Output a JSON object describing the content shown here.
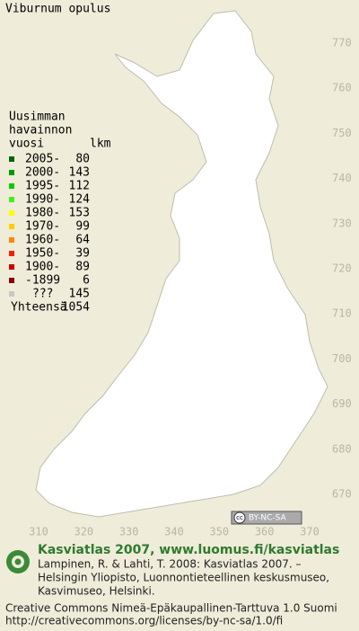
{
  "title": "Viburnum opulus",
  "legend": {
    "heading": [
      "Uusimman",
      "havainnon"
    ],
    "columns": [
      "vuosi",
      "lkm"
    ],
    "entries": [
      {
        "label": "2005-",
        "count": 80,
        "color": "#006600"
      },
      {
        "label": "2000-",
        "count": 143,
        "color": "#009900"
      },
      {
        "label": "1995-",
        "count": 112,
        "color": "#00cc00"
      },
      {
        "label": "1990-",
        "count": 124,
        "color": "#44ee22"
      },
      {
        "label": "1980-",
        "count": 153,
        "color": "#ffff00"
      },
      {
        "label": "1970-",
        "count": 99,
        "color": "#ffcc00"
      },
      {
        "label": "1960-",
        "count": 64,
        "color": "#ff8800"
      },
      {
        "label": "1950-",
        "count": 39,
        "color": "#ee2200"
      },
      {
        "label": "1900-",
        "count": 89,
        "color": "#cc0000"
      },
      {
        "label": "-1899",
        "count": 6,
        "color": "#880000"
      },
      {
        "label": "???",
        "count": 145,
        "color": "#c8c8c8"
      }
    ],
    "total_label": "Yhteensä",
    "total": 1054
  },
  "axes": {
    "y_labels": [
      770,
      760,
      750,
      740,
      730,
      720,
      710,
      700,
      690,
      680,
      670
    ],
    "x_labels": [
      310,
      320,
      330,
      340,
      350,
      360,
      370
    ]
  },
  "badge": {
    "cc": "cc",
    "text": "BY-NC-SA"
  },
  "footer": {
    "heading": "Kasviatlas 2007, www.luomus.fi/kasviatlas",
    "citation": [
      "Lampinen, R. & Lahti, T. 2008: Kasviatlas 2007. –",
      "Helsingin Yliopisto, Luonnontieteellinen keskusmuseo,",
      "Kasvimuseo, Helsinki."
    ],
    "license": [
      "Creative Commons Nimeä-Epäkaupallinen-Tarttuva 1.0 Suomi",
      "http://creativecommons.org/licenses/by-nc-sa/1.0/fi"
    ]
  }
}
